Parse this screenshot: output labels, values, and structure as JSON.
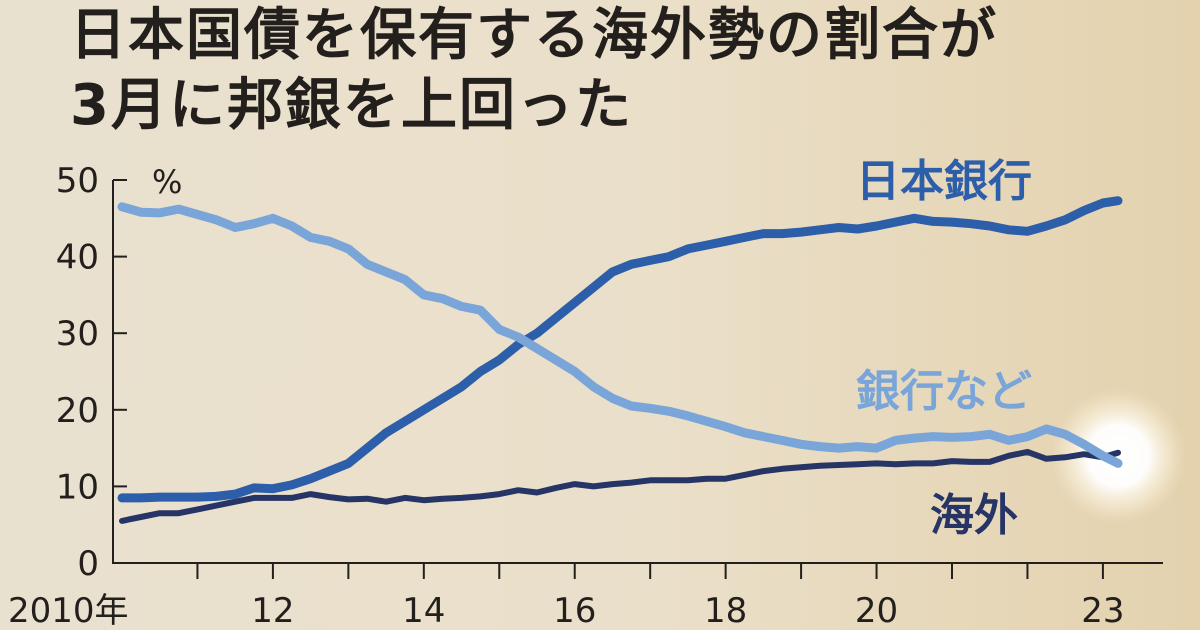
{
  "title": {
    "line1": "日本国債を保有する海外勢の割合が",
    "line2": "3月に邦銀を上回った"
  },
  "colors": {
    "background": "#ebe1cc",
    "axis": "#231f1c",
    "boj": "#2c5ea9",
    "banks": "#7aa5d8",
    "overseas": "#263466"
  },
  "chart_data": {
    "type": "line",
    "ylabel": "%",
    "ylim": [
      0,
      50
    ],
    "yticks": [
      "0",
      "10",
      "20",
      "30",
      "40",
      "50"
    ],
    "xlim": [
      2010,
      2023.3
    ],
    "xtick_labels": [
      {
        "x": 2010,
        "label": "2010年"
      },
      {
        "x": 2012,
        "label": "12"
      },
      {
        "x": 2014,
        "label": "14"
      },
      {
        "x": 2016,
        "label": "16"
      },
      {
        "x": 2018,
        "label": "18"
      },
      {
        "x": 2020,
        "label": "20"
      },
      {
        "x": 2023,
        "label": "23"
      }
    ],
    "xtick_marks": [
      2011,
      2012,
      2013,
      2014,
      2015,
      2016,
      2017,
      2018,
      2019,
      2020,
      2021,
      2022,
      2023
    ],
    "series": [
      {
        "name": "日本銀行",
        "key": "boj",
        "points": [
          [
            2010.0,
            8.5
          ],
          [
            2010.25,
            8.5
          ],
          [
            2010.5,
            8.6
          ],
          [
            2010.75,
            8.6
          ],
          [
            2011.0,
            8.6
          ],
          [
            2011.25,
            8.7
          ],
          [
            2011.5,
            9.0
          ],
          [
            2011.75,
            9.8
          ],
          [
            2012.0,
            9.7
          ],
          [
            2012.25,
            10.2
          ],
          [
            2012.5,
            11.0
          ],
          [
            2012.75,
            12.0
          ],
          [
            2013.0,
            13.0
          ],
          [
            2013.25,
            15.0
          ],
          [
            2013.5,
            17.0
          ],
          [
            2013.75,
            18.5
          ],
          [
            2014.0,
            20.0
          ],
          [
            2014.25,
            21.5
          ],
          [
            2014.5,
            23.0
          ],
          [
            2014.75,
            25.0
          ],
          [
            2015.0,
            26.5
          ],
          [
            2015.25,
            28.5
          ],
          [
            2015.5,
            30.0
          ],
          [
            2015.75,
            32.0
          ],
          [
            2016.0,
            34.0
          ],
          [
            2016.25,
            36.0
          ],
          [
            2016.5,
            38.0
          ],
          [
            2016.75,
            39.0
          ],
          [
            2017.0,
            39.5
          ],
          [
            2017.25,
            40.0
          ],
          [
            2017.5,
            41.0
          ],
          [
            2017.75,
            41.5
          ],
          [
            2018.0,
            42.0
          ],
          [
            2018.25,
            42.5
          ],
          [
            2018.5,
            43.0
          ],
          [
            2018.75,
            43.0
          ],
          [
            2019.0,
            43.2
          ],
          [
            2019.25,
            43.5
          ],
          [
            2019.5,
            43.8
          ],
          [
            2019.75,
            43.6
          ],
          [
            2020.0,
            44.0
          ],
          [
            2020.25,
            44.5
          ],
          [
            2020.5,
            45.0
          ],
          [
            2020.75,
            44.6
          ],
          [
            2021.0,
            44.5
          ],
          [
            2021.25,
            44.3
          ],
          [
            2021.5,
            44.0
          ],
          [
            2021.75,
            43.5
          ],
          [
            2022.0,
            43.3
          ],
          [
            2022.25,
            44.0
          ],
          [
            2022.5,
            44.8
          ],
          [
            2022.75,
            46.0
          ],
          [
            2023.0,
            47.0
          ],
          [
            2023.2,
            47.3
          ]
        ]
      },
      {
        "name": "銀行など",
        "key": "banks",
        "points": [
          [
            2010.0,
            46.5
          ],
          [
            2010.25,
            45.8
          ],
          [
            2010.5,
            45.7
          ],
          [
            2010.75,
            46.2
          ],
          [
            2011.0,
            45.5
          ],
          [
            2011.25,
            44.8
          ],
          [
            2011.5,
            43.8
          ],
          [
            2011.75,
            44.3
          ],
          [
            2012.0,
            45.0
          ],
          [
            2012.25,
            44.0
          ],
          [
            2012.5,
            42.5
          ],
          [
            2012.75,
            42.0
          ],
          [
            2013.0,
            41.0
          ],
          [
            2013.25,
            39.0
          ],
          [
            2013.5,
            38.0
          ],
          [
            2013.75,
            37.0
          ],
          [
            2014.0,
            35.0
          ],
          [
            2014.25,
            34.5
          ],
          [
            2014.5,
            33.5
          ],
          [
            2014.75,
            33.0
          ],
          [
            2015.0,
            30.5
          ],
          [
            2015.25,
            29.5
          ],
          [
            2015.5,
            28.0
          ],
          [
            2015.75,
            26.5
          ],
          [
            2016.0,
            25.0
          ],
          [
            2016.25,
            23.0
          ],
          [
            2016.5,
            21.5
          ],
          [
            2016.75,
            20.5
          ],
          [
            2017.0,
            20.2
          ],
          [
            2017.25,
            19.8
          ],
          [
            2017.5,
            19.2
          ],
          [
            2017.75,
            18.5
          ],
          [
            2018.0,
            17.8
          ],
          [
            2018.25,
            17.0
          ],
          [
            2018.5,
            16.5
          ],
          [
            2018.75,
            16.0
          ],
          [
            2019.0,
            15.5
          ],
          [
            2019.25,
            15.2
          ],
          [
            2019.5,
            15.0
          ],
          [
            2019.75,
            15.2
          ],
          [
            2020.0,
            15.0
          ],
          [
            2020.25,
            16.0
          ],
          [
            2020.5,
            16.3
          ],
          [
            2020.75,
            16.5
          ],
          [
            2021.0,
            16.4
          ],
          [
            2021.25,
            16.5
          ],
          [
            2021.5,
            16.8
          ],
          [
            2021.75,
            16.0
          ],
          [
            2022.0,
            16.5
          ],
          [
            2022.25,
            17.5
          ],
          [
            2022.5,
            16.8
          ],
          [
            2022.75,
            15.5
          ],
          [
            2023.0,
            14.0
          ],
          [
            2023.2,
            13.0
          ]
        ]
      },
      {
        "name": "海外",
        "key": "overseas",
        "points": [
          [
            2010.0,
            5.5
          ],
          [
            2010.25,
            6.0
          ],
          [
            2010.5,
            6.5
          ],
          [
            2010.75,
            6.5
          ],
          [
            2011.0,
            7.0
          ],
          [
            2011.25,
            7.5
          ],
          [
            2011.5,
            8.0
          ],
          [
            2011.75,
            8.5
          ],
          [
            2012.0,
            8.5
          ],
          [
            2012.25,
            8.5
          ],
          [
            2012.5,
            9.0
          ],
          [
            2012.75,
            8.6
          ],
          [
            2013.0,
            8.3
          ],
          [
            2013.25,
            8.4
          ],
          [
            2013.5,
            8.0
          ],
          [
            2013.75,
            8.5
          ],
          [
            2014.0,
            8.2
          ],
          [
            2014.25,
            8.4
          ],
          [
            2014.5,
            8.5
          ],
          [
            2014.75,
            8.7
          ],
          [
            2015.0,
            9.0
          ],
          [
            2015.25,
            9.5
          ],
          [
            2015.5,
            9.2
          ],
          [
            2015.75,
            9.8
          ],
          [
            2016.0,
            10.3
          ],
          [
            2016.25,
            10.0
          ],
          [
            2016.5,
            10.3
          ],
          [
            2016.75,
            10.5
          ],
          [
            2017.0,
            10.8
          ],
          [
            2017.25,
            10.8
          ],
          [
            2017.5,
            10.8
          ],
          [
            2017.75,
            11.0
          ],
          [
            2018.0,
            11.0
          ],
          [
            2018.25,
            11.5
          ],
          [
            2018.5,
            12.0
          ],
          [
            2018.75,
            12.3
          ],
          [
            2019.0,
            12.5
          ],
          [
            2019.25,
            12.7
          ],
          [
            2019.5,
            12.8
          ],
          [
            2019.75,
            12.9
          ],
          [
            2020.0,
            13.0
          ],
          [
            2020.25,
            12.9
          ],
          [
            2020.5,
            13.0
          ],
          [
            2020.75,
            13.0
          ],
          [
            2021.0,
            13.3
          ],
          [
            2021.25,
            13.2
          ],
          [
            2021.5,
            13.2
          ],
          [
            2021.75,
            14.0
          ],
          [
            2022.0,
            14.5
          ],
          [
            2022.25,
            13.6
          ],
          [
            2022.5,
            13.8
          ],
          [
            2022.75,
            14.2
          ],
          [
            2023.0,
            13.8
          ],
          [
            2023.2,
            14.4
          ]
        ]
      }
    ]
  }
}
